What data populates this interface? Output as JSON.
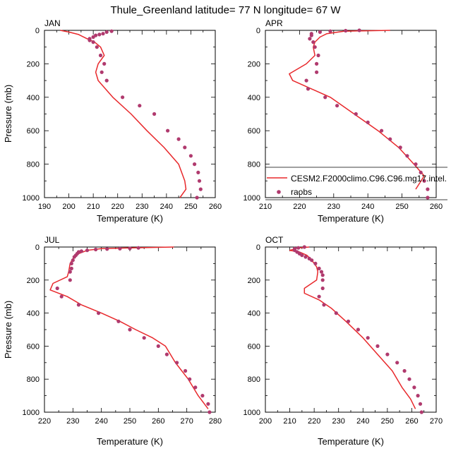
{
  "title": "Thule_Greenland  latitude= 77 N longitude= 67 W",
  "colors": {
    "model_line": "#e8282b",
    "obs_marker": "#b03a6e",
    "axis": "#000000"
  },
  "legend": {
    "model_label": "CESM2.F2000climo.C96.C96.mg17.intel.",
    "obs_label": "raobs",
    "placement": "bottom-right of APR panel"
  },
  "chart_data": [
    {
      "type": "line",
      "panel": "JAN",
      "xlabel": "Temperature (K)",
      "ylabel": "Pressure (mb)",
      "xlim": [
        190,
        260
      ],
      "ylim": [
        1000,
        0
      ],
      "xticks": [
        190,
        200,
        210,
        220,
        230,
        240,
        250,
        260
      ],
      "yticks": [
        0,
        200,
        400,
        600,
        800,
        1000
      ],
      "y_inverted": true,
      "series": [
        {
          "name": "CESM2.F2000climo.C96.C96.mg17.intel.",
          "kind": "line",
          "points": [
            [
              196.5,
              0
            ],
            [
              200,
              10
            ],
            [
              204,
              25
            ],
            [
              207.5,
              50
            ],
            [
              210.5,
              70
            ],
            [
              213,
              100
            ],
            [
              214.5,
              150
            ],
            [
              212,
              200
            ],
            [
              211,
              250
            ],
            [
              212,
              300
            ],
            [
              218,
              400
            ],
            [
              225.5,
              500
            ],
            [
              232,
              600
            ],
            [
              239,
              700
            ],
            [
              245,
              800
            ],
            [
              247.5,
              900
            ],
            [
              248,
              950
            ],
            [
              245.5,
              1000
            ]
          ]
        },
        {
          "name": "raobs",
          "kind": "markers",
          "points": [
            [
              217.5,
              5
            ],
            [
              215.5,
              10
            ],
            [
              214,
              20
            ],
            [
              212.5,
              25
            ],
            [
              211,
              30
            ],
            [
              210,
              40
            ],
            [
              208.5,
              50
            ],
            [
              208.5,
              60
            ],
            [
              210,
              70
            ],
            [
              211.5,
              100
            ],
            [
              213,
              150
            ],
            [
              214.5,
              200
            ],
            [
              213.5,
              250
            ],
            [
              215.5,
              300
            ],
            [
              222,
              400
            ],
            [
              229,
              450
            ],
            [
              235,
              500
            ],
            [
              240.5,
              600
            ],
            [
              245,
              650
            ],
            [
              247.5,
              700
            ],
            [
              250,
              750
            ],
            [
              251.5,
              800
            ],
            [
              253,
              850
            ],
            [
              253.5,
              900
            ],
            [
              254,
              950
            ],
            [
              252.5,
              1000
            ]
          ]
        }
      ]
    },
    {
      "type": "line",
      "panel": "APR",
      "xlabel": "Temperature (K)",
      "ylabel": "",
      "xlim": [
        210,
        260
      ],
      "ylim": [
        1000,
        0
      ],
      "xticks": [
        210,
        220,
        230,
        240,
        250,
        260
      ],
      "yticks": [
        0,
        200,
        400,
        600,
        800,
        1000
      ],
      "y_inverted": true,
      "series": [
        {
          "name": "CESM2.F2000climo.C96.C96.mg17.intel.",
          "kind": "line",
          "points": [
            [
              246.5,
              0
            ],
            [
              233,
              5
            ],
            [
              228,
              20
            ],
            [
              226,
              40
            ],
            [
              224.5,
              70
            ],
            [
              224,
              100
            ],
            [
              224.5,
              150
            ],
            [
              222,
              200
            ],
            [
              217,
              260
            ],
            [
              218,
              300
            ],
            [
              223.5,
              350
            ],
            [
              229,
              400
            ],
            [
              236,
              500
            ],
            [
              243,
              600
            ],
            [
              249,
              700
            ],
            [
              253.5,
              800
            ],
            [
              256.5,
              870
            ],
            [
              254,
              950
            ]
          ]
        },
        {
          "name": "raobs",
          "kind": "markers",
          "points": [
            [
              237.5,
              0
            ],
            [
              233.5,
              2
            ],
            [
              229,
              5
            ],
            [
              226,
              10
            ],
            [
              223.5,
              20
            ],
            [
              223.5,
              30
            ],
            [
              223,
              50
            ],
            [
              224,
              70
            ],
            [
              224.5,
              100
            ],
            [
              225.5,
              150
            ],
            [
              225,
              200
            ],
            [
              225,
              250
            ],
            [
              222,
              300
            ],
            [
              222.5,
              350
            ],
            [
              227.5,
              400
            ],
            [
              231,
              450
            ],
            [
              236.5,
              500
            ],
            [
              240,
              550
            ],
            [
              244,
              600
            ],
            [
              246.5,
              650
            ],
            [
              249.5,
              700
            ],
            [
              251.5,
              750
            ],
            [
              254,
              800
            ],
            [
              255.5,
              850
            ],
            [
              256.5,
              900
            ],
            [
              257.5,
              950
            ],
            [
              257.5,
              1000
            ]
          ]
        }
      ]
    },
    {
      "type": "line",
      "panel": "JUL",
      "xlabel": "Temperature (K)",
      "ylabel": "Pressure (mb)",
      "xlim": [
        220,
        280
      ],
      "ylim": [
        1000,
        0
      ],
      "xticks": [
        220,
        230,
        240,
        250,
        260,
        270,
        280
      ],
      "yticks": [
        0,
        200,
        400,
        600,
        800,
        1000
      ],
      "y_inverted": true,
      "series": [
        {
          "name": "CESM2.F2000climo.C96.C96.mg17.intel.",
          "kind": "line",
          "points": [
            [
              265.5,
              0
            ],
            [
              250,
              5
            ],
            [
              240,
              10
            ],
            [
              235,
              20
            ],
            [
              232,
              40
            ],
            [
              230,
              70
            ],
            [
              229,
              100
            ],
            [
              228.5,
              150
            ],
            [
              228,
              180
            ],
            [
              223,
              220
            ],
            [
              222,
              260
            ],
            [
              228,
              300
            ],
            [
              233,
              350
            ],
            [
              240,
              400
            ],
            [
              246.5,
              450
            ],
            [
              252,
              500
            ],
            [
              258,
              550
            ],
            [
              262.5,
              600
            ],
            [
              266,
              700
            ],
            [
              270.5,
              800
            ],
            [
              274,
              900
            ],
            [
              277.5,
              980
            ]
          ]
        },
        {
          "name": "raobs",
          "kind": "markers",
          "points": [
            [
              253,
              5
            ],
            [
              250,
              8
            ],
            [
              246.5,
              10
            ],
            [
              242,
              12
            ],
            [
              238,
              15
            ],
            [
              235,
              20
            ],
            [
              233,
              25
            ],
            [
              232,
              30
            ],
            [
              231.5,
              40
            ],
            [
              231,
              50
            ],
            [
              230.5,
              60
            ],
            [
              230,
              80
            ],
            [
              229.5,
              100
            ],
            [
              229.5,
              130
            ],
            [
              229,
              150
            ],
            [
              229,
              200
            ],
            [
              224.5,
              250
            ],
            [
              226,
              300
            ],
            [
              232,
              350
            ],
            [
              239,
              400
            ],
            [
              246,
              450
            ],
            [
              250,
              500
            ],
            [
              255,
              550
            ],
            [
              260,
              600
            ],
            [
              263,
              650
            ],
            [
              266.5,
              700
            ],
            [
              269.5,
              750
            ],
            [
              271,
              800
            ],
            [
              273,
              850
            ],
            [
              275.5,
              900
            ],
            [
              277.5,
              950
            ],
            [
              278,
              1000
            ]
          ]
        }
      ]
    },
    {
      "type": "line",
      "panel": "OCT",
      "xlabel": "Temperature (K)",
      "ylabel": "",
      "xlim": [
        200,
        270
      ],
      "ylim": [
        1000,
        0
      ],
      "xticks": [
        200,
        210,
        220,
        230,
        240,
        250,
        260,
        270
      ],
      "yticks": [
        0,
        200,
        400,
        600,
        800,
        1000
      ],
      "y_inverted": true,
      "series": [
        {
          "name": "CESM2.F2000climo.C96.C96.mg17.intel.",
          "kind": "line",
          "points": [
            [
              218,
              0
            ],
            [
              213.5,
              5
            ],
            [
              210,
              20
            ],
            [
              214,
              30
            ],
            [
              217,
              50
            ],
            [
              219,
              80
            ],
            [
              221,
              120
            ],
            [
              221.5,
              150
            ],
            [
              221,
              200
            ],
            [
              216,
              250
            ],
            [
              216,
              280
            ],
            [
              222,
              320
            ],
            [
              227,
              370
            ],
            [
              233,
              450
            ],
            [
              240,
              550
            ],
            [
              246,
              650
            ],
            [
              252,
              750
            ],
            [
              256,
              850
            ],
            [
              259.5,
              920
            ],
            [
              261.5,
              980
            ]
          ]
        },
        {
          "name": "raobs",
          "kind": "markers",
          "points": [
            [
              216,
              0
            ],
            [
              213.5,
              5
            ],
            [
              212,
              10
            ],
            [
              212,
              20
            ],
            [
              213,
              30
            ],
            [
              214,
              40
            ],
            [
              215,
              50
            ],
            [
              216.5,
              60
            ],
            [
              218,
              70
            ],
            [
              219,
              80
            ],
            [
              220.5,
              100
            ],
            [
              222,
              130
            ],
            [
              223,
              150
            ],
            [
              223.5,
              170
            ],
            [
              223.5,
              200
            ],
            [
              223.5,
              250
            ],
            [
              222,
              300
            ],
            [
              224,
              350
            ],
            [
              229,
              400
            ],
            [
              234,
              450
            ],
            [
              238,
              500
            ],
            [
              242,
              550
            ],
            [
              246,
              600
            ],
            [
              250,
              650
            ],
            [
              254,
              700
            ],
            [
              257,
              750
            ],
            [
              259,
              800
            ],
            [
              261,
              850
            ],
            [
              262.5,
              900
            ],
            [
              263.5,
              950
            ],
            [
              264,
              1000
            ]
          ]
        }
      ]
    }
  ]
}
